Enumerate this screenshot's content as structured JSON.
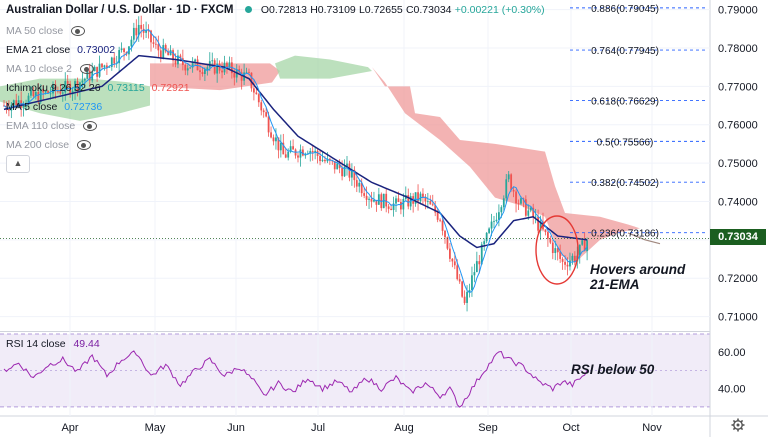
{
  "header": {
    "symbol": "Australian Dollar / U.S. Dollar · 1D · FXCM",
    "open": "O0.72813",
    "high": "H0.73109",
    "low": "L0.72655",
    "close": "C0.73034",
    "change": "+0.00221 (+0.30%)"
  },
  "indicators": {
    "ma50": "MA 50 close",
    "ema21_label": "EMA 21 close",
    "ema21_value": "0.73002",
    "ma_hidden": "MA 10 close 2",
    "ichimoku_label": "Ichimoku 9 26 52 26",
    "ichimoku_v1": "0.73115",
    "ichimoku_v2": "0.72921",
    "ma5_label": "MA 5 close",
    "ma5_value": "0.72736",
    "ema110": "EMA 110 close",
    "ma200": "MA 200 close"
  },
  "current_price": "0.73034",
  "rsi": {
    "label": "RSI 14 close",
    "value": "49.44"
  },
  "annotations": {
    "ema": [
      "Hovers around",
      "21-EMA"
    ],
    "rsi": "RSI below 50"
  },
  "colors": {
    "up": "#26a69a",
    "down": "#ef5350",
    "ema": "#1a237e",
    "ma5": "#2196f3",
    "fib": "#2962ff",
    "rsi": "#9c27b0",
    "cloud_bull": "#a5d6a7",
    "cloud_bear": "#ef9a9a"
  },
  "icons": {
    "visibility": "eye-icon",
    "collapse": "chevron-up-icon",
    "settings": "gear-icon"
  },
  "chart_data": {
    "type": "line",
    "title": "Australian Dollar / U.S. Dollar · 1D · FXCM",
    "xlabel": "",
    "ylabel": "",
    "x_ticks": [
      "Apr",
      "May",
      "Jun",
      "Jul",
      "Aug",
      "Sep",
      "Oct",
      "Nov"
    ],
    "y_ticks": [
      "0.79000",
      "0.78000",
      "0.77000",
      "0.76000",
      "0.75000",
      "0.74000",
      "0.73000",
      "0.72000",
      "0.71000"
    ],
    "ylim": [
      0.7065,
      0.7925
    ],
    "fib_levels": [
      {
        "label": "0.886(0.79045)",
        "value": 0.79045
      },
      {
        "label": "0.764(0.77945)",
        "value": 0.77945
      },
      {
        "label": "0.618(0.76629)",
        "value": 0.76629
      },
      {
        "label": "0.5(0.75566)",
        "value": 0.75566
      },
      {
        "label": "0.382(0.74502)",
        "value": 0.74502
      },
      {
        "label": "0.236(0.73186)",
        "value": 0.73186
      }
    ],
    "price_points": [
      [
        0,
        0.765
      ],
      [
        16,
        0.768
      ],
      [
        28,
        0.77
      ],
      [
        40,
        0.775
      ],
      [
        50,
        0.78
      ],
      [
        55,
        0.786
      ],
      [
        62,
        0.78
      ],
      [
        72,
        0.776
      ],
      [
        82,
        0.775
      ],
      [
        90,
        0.775
      ],
      [
        100,
        0.772
      ],
      [
        108,
        0.76
      ],
      [
        114,
        0.752
      ],
      [
        124,
        0.754
      ],
      [
        132,
        0.75
      ],
      [
        140,
        0.748
      ],
      [
        150,
        0.741
      ],
      [
        160,
        0.739
      ],
      [
        170,
        0.741
      ],
      [
        178,
        0.736
      ],
      [
        184,
        0.722
      ],
      [
        188,
        0.713
      ],
      [
        192,
        0.722
      ],
      [
        200,
        0.735
      ],
      [
        206,
        0.746
      ],
      [
        210,
        0.74
      ],
      [
        216,
        0.736
      ],
      [
        222,
        0.73
      ],
      [
        228,
        0.724
      ],
      [
        234,
        0.726
      ],
      [
        238,
        0.73
      ]
    ],
    "ema21_points": [
      [
        0,
        0.764
      ],
      [
        20,
        0.767
      ],
      [
        40,
        0.77
      ],
      [
        55,
        0.778
      ],
      [
        70,
        0.777
      ],
      [
        90,
        0.775
      ],
      [
        100,
        0.772
      ],
      [
        110,
        0.764
      ],
      [
        120,
        0.757
      ],
      [
        135,
        0.751
      ],
      [
        150,
        0.745
      ],
      [
        165,
        0.741
      ],
      [
        178,
        0.737
      ],
      [
        186,
        0.731
      ],
      [
        193,
        0.728
      ],
      [
        200,
        0.729
      ],
      [
        208,
        0.735
      ],
      [
        216,
        0.736
      ],
      [
        226,
        0.731
      ],
      [
        238,
        0.73
      ]
    ],
    "rsi_ylim": [
      25,
      70
    ],
    "rsi_ticks": [
      "60.00",
      "40.00"
    ],
    "rsi_points": [
      [
        0,
        50
      ],
      [
        6,
        54
      ],
      [
        12,
        46
      ],
      [
        18,
        53
      ],
      [
        24,
        56
      ],
      [
        30,
        49
      ],
      [
        36,
        58
      ],
      [
        42,
        47
      ],
      [
        48,
        56
      ],
      [
        54,
        60
      ],
      [
        60,
        47
      ],
      [
        66,
        53
      ],
      [
        72,
        42
      ],
      [
        78,
        50
      ],
      [
        84,
        56
      ],
      [
        90,
        47
      ],
      [
        96,
        52
      ],
      [
        102,
        44
      ],
      [
        106,
        36
      ],
      [
        112,
        43
      ],
      [
        118,
        38
      ],
      [
        124,
        46
      ],
      [
        130,
        40
      ],
      [
        136,
        44
      ],
      [
        142,
        38
      ],
      [
        148,
        46
      ],
      [
        154,
        40
      ],
      [
        160,
        46
      ],
      [
        166,
        38
      ],
      [
        172,
        43
      ],
      [
        178,
        36
      ],
      [
        182,
        40
      ],
      [
        186,
        30
      ],
      [
        190,
        38
      ],
      [
        196,
        50
      ],
      [
        202,
        60
      ],
      [
        206,
        56
      ],
      [
        212,
        52
      ],
      [
        218,
        44
      ],
      [
        224,
        40
      ],
      [
        228,
        44
      ],
      [
        232,
        42
      ],
      [
        238,
        49
      ]
    ]
  }
}
